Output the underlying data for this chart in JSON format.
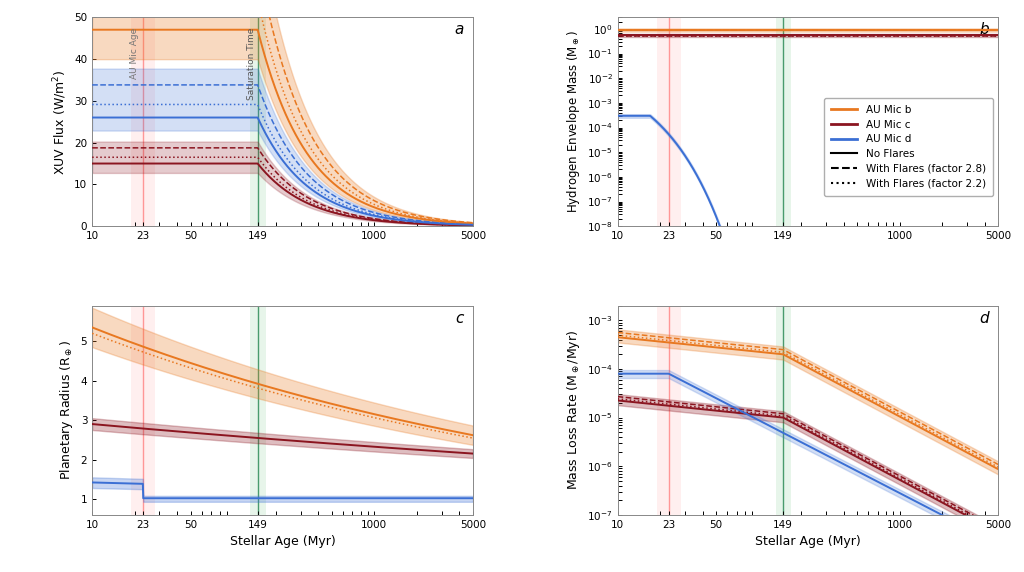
{
  "colors": {
    "orange": "#E87820",
    "darkred": "#8B1520",
    "blue": "#3B6FD4",
    "au_mic_age_line": "#FF8888",
    "au_mic_age_band": "#FFCCCC",
    "sat_time_line": "#2E8B57",
    "sat_time_band": "#B2DFBB"
  },
  "xlim": [
    10,
    5000
  ],
  "panel_labels": [
    "a",
    "b",
    "c",
    "d"
  ]
}
